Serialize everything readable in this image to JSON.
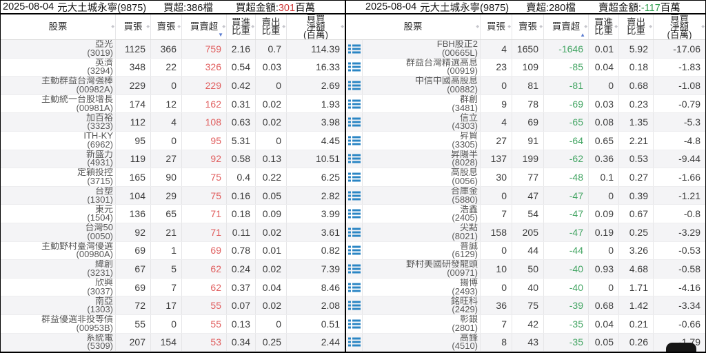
{
  "glyphs": {
    "sort_icon": "◆",
    "sort_desc": "▼",
    "sort_asc": "▲",
    "row_icon": "list-icon"
  },
  "colors": {
    "buy_amount": "#cc3333",
    "sell_amount": "#2f9e4e",
    "net_buy_value": "#e05d5d",
    "net_sell_value": "#43a563",
    "active_sort_arrow": "#5a7bd0",
    "row_icon_blue": "#2b86c4",
    "zebra_row": "#f4f4f6"
  },
  "panels": [
    {
      "id": "net-buy",
      "title": {
        "date": "2025-08-04",
        "broker": "元大土城永寧(9875)",
        "count": "買超:386檔",
        "amount_label": "買超金額:",
        "amount_value": "301",
        "amount_unit": "百萬"
      },
      "has_row_icons": false,
      "sort": {
        "column": "net",
        "dir": "desc"
      },
      "columns": [
        {
          "key": "stock",
          "label": [
            "股票"
          ]
        },
        {
          "key": "buy",
          "label": [
            "買張"
          ]
        },
        {
          "key": "sell",
          "label": [
            "賣張"
          ]
        },
        {
          "key": "net",
          "label": [
            "買賣超"
          ],
          "sorted": "desc"
        },
        {
          "key": "buy_pct",
          "label": [
            "買進",
            "比重"
          ]
        },
        {
          "key": "sell_pct",
          "label": [
            "賣出",
            "比重"
          ]
        },
        {
          "key": "net_amt",
          "label": [
            "買賣",
            "淨額",
            "(百萬)"
          ]
        }
      ],
      "rows": [
        {
          "name": "亞光",
          "code": "(3019)",
          "buy": "1125",
          "sell": "366",
          "net": "759",
          "buy_pct": "2.16",
          "sell_pct": "0.7",
          "net_amt": "114.39"
        },
        {
          "name": "英濟",
          "code": "(3294)",
          "buy": "348",
          "sell": "22",
          "net": "326",
          "buy_pct": "0.54",
          "sell_pct": "0.03",
          "net_amt": "16.33"
        },
        {
          "name": "主動群益台灣強棒",
          "code": "(00982A)",
          "buy": "229",
          "sell": "0",
          "net": "229",
          "buy_pct": "0.42",
          "sell_pct": "0",
          "net_amt": "2.69"
        },
        {
          "name": "主動統一台股增長",
          "code": "(00981A)",
          "buy": "174",
          "sell": "12",
          "net": "162",
          "buy_pct": "0.31",
          "sell_pct": "0.02",
          "net_amt": "1.93"
        },
        {
          "name": "加百裕",
          "code": "(3323)",
          "buy": "112",
          "sell": "4",
          "net": "108",
          "buy_pct": "0.63",
          "sell_pct": "0.02",
          "net_amt": "3.98"
        },
        {
          "name": "ITH-KY",
          "code": "(6962)",
          "buy": "95",
          "sell": "0",
          "net": "95",
          "buy_pct": "5.31",
          "sell_pct": "0",
          "net_amt": "4.45"
        },
        {
          "name": "新盛力",
          "code": "(4931)",
          "buy": "119",
          "sell": "27",
          "net": "92",
          "buy_pct": "0.58",
          "sell_pct": "0.13",
          "net_amt": "10.51"
        },
        {
          "name": "定穎投控",
          "code": "(3715)",
          "buy": "165",
          "sell": "90",
          "net": "75",
          "buy_pct": "0.4",
          "sell_pct": "0.22",
          "net_amt": "6.25"
        },
        {
          "name": "台塑",
          "code": "(1301)",
          "buy": "104",
          "sell": "29",
          "net": "75",
          "buy_pct": "0.16",
          "sell_pct": "0.05",
          "net_amt": "2.82"
        },
        {
          "name": "東元",
          "code": "(1504)",
          "buy": "136",
          "sell": "65",
          "net": "71",
          "buy_pct": "0.18",
          "sell_pct": "0.09",
          "net_amt": "3.99"
        },
        {
          "name": "台灣50",
          "code": "(0050)",
          "buy": "92",
          "sell": "21",
          "net": "71",
          "buy_pct": "0.11",
          "sell_pct": "0.02",
          "net_amt": "3.61"
        },
        {
          "name": "主動野村臺灣優選",
          "code": "(00980A)",
          "buy": "69",
          "sell": "1",
          "net": "69",
          "buy_pct": "0.78",
          "sell_pct": "0.01",
          "net_amt": "0.82"
        },
        {
          "name": "緯創",
          "code": "(3231)",
          "buy": "67",
          "sell": "5",
          "net": "62",
          "buy_pct": "0.24",
          "sell_pct": "0.02",
          "net_amt": "7.39"
        },
        {
          "name": "欣興",
          "code": "(3037)",
          "buy": "69",
          "sell": "7",
          "net": "62",
          "buy_pct": "0.37",
          "sell_pct": "0.04",
          "net_amt": "8.46"
        },
        {
          "name": "南亞",
          "code": "(1303)",
          "buy": "72",
          "sell": "17",
          "net": "55",
          "buy_pct": "0.07",
          "sell_pct": "0.02",
          "net_amt": "2.08"
        },
        {
          "name": "群益優選非投等債",
          "code": "(00953B)",
          "buy": "55",
          "sell": "0",
          "net": "55",
          "buy_pct": "0.13",
          "sell_pct": "0",
          "net_amt": "0.51"
        },
        {
          "name": "系統電",
          "code": "(5309)",
          "buy": "207",
          "sell": "154",
          "net": "53",
          "buy_pct": "0.34",
          "sell_pct": "0.25",
          "net_amt": "2.44"
        }
      ]
    },
    {
      "id": "net-sell",
      "title": {
        "date": "2025-08-04",
        "broker": "元大土城永寧(9875)",
        "count": "賣超:280檔",
        "amount_label": "賣超金額:",
        "amount_value": "-117",
        "amount_unit": "百萬"
      },
      "has_row_icons": true,
      "sort": {
        "column": "net",
        "dir": "asc"
      },
      "columns": [
        {
          "key": "stock",
          "label": [
            "股票"
          ]
        },
        {
          "key": "buy",
          "label": [
            "買張"
          ]
        },
        {
          "key": "sell",
          "label": [
            "賣張"
          ]
        },
        {
          "key": "net",
          "label": [
            "買賣超"
          ],
          "sorted": "asc"
        },
        {
          "key": "buy_pct",
          "label": [
            "買進",
            "比重"
          ]
        },
        {
          "key": "sell_pct",
          "label": [
            "賣出",
            "比重"
          ]
        },
        {
          "key": "net_amt",
          "label": [
            "買賣",
            "淨額",
            "(百萬)"
          ]
        }
      ],
      "rows": [
        {
          "name": "FBH股正2",
          "code": "(00665L)",
          "buy": "4",
          "sell": "1650",
          "net": "-1646",
          "buy_pct": "0.01",
          "sell_pct": "5.92",
          "net_amt": "-17.06"
        },
        {
          "name": "群益台灣精選高息",
          "code": "(00919)",
          "buy": "23",
          "sell": "109",
          "net": "-85",
          "buy_pct": "0.04",
          "sell_pct": "0.18",
          "net_amt": "-1.83"
        },
        {
          "name": "中信中國高股息",
          "code": "(00882)",
          "buy": "0",
          "sell": "81",
          "net": "-81",
          "buy_pct": "0",
          "sell_pct": "0.68",
          "net_amt": "-1.08"
        },
        {
          "name": "群創",
          "code": "(3481)",
          "buy": "9",
          "sell": "78",
          "net": "-69",
          "buy_pct": "0.03",
          "sell_pct": "0.23",
          "net_amt": "-0.79"
        },
        {
          "name": "信立",
          "code": "(4303)",
          "buy": "4",
          "sell": "69",
          "net": "-65",
          "buy_pct": "0.08",
          "sell_pct": "1.35",
          "net_amt": "-5.3"
        },
        {
          "name": "昇貿",
          "code": "(3305)",
          "buy": "27",
          "sell": "91",
          "net": "-64",
          "buy_pct": "0.65",
          "sell_pct": "2.21",
          "net_amt": "-4.8"
        },
        {
          "name": "昇陽半",
          "code": "(8028)",
          "buy": "137",
          "sell": "199",
          "net": "-62",
          "buy_pct": "0.36",
          "sell_pct": "0.53",
          "net_amt": "-9.44"
        },
        {
          "name": "高股息",
          "code": "(0056)",
          "buy": "30",
          "sell": "77",
          "net": "-48",
          "buy_pct": "0.1",
          "sell_pct": "0.27",
          "net_amt": "-1.66"
        },
        {
          "name": "合庫金",
          "code": "(5880)",
          "buy": "0",
          "sell": "47",
          "net": "-47",
          "buy_pct": "0",
          "sell_pct": "0.39",
          "net_amt": "-1.21"
        },
        {
          "name": "浩鑫",
          "code": "(2405)",
          "buy": "7",
          "sell": "54",
          "net": "-47",
          "buy_pct": "0.09",
          "sell_pct": "0.67",
          "net_amt": "-0.8"
        },
        {
          "name": "尖點",
          "code": "(8021)",
          "buy": "158",
          "sell": "205",
          "net": "-47",
          "buy_pct": "0.19",
          "sell_pct": "0.25",
          "net_amt": "-3.29"
        },
        {
          "name": "普誠",
          "code": "(6129)",
          "buy": "0",
          "sell": "44",
          "net": "-44",
          "buy_pct": "0",
          "sell_pct": "3.26",
          "net_amt": "-0.53"
        },
        {
          "name": "野村美國研發龍頭",
          "code": "(00971)",
          "buy": "10",
          "sell": "50",
          "net": "-40",
          "buy_pct": "0.93",
          "sell_pct": "4.68",
          "net_amt": "-0.58"
        },
        {
          "name": "揚博",
          "code": "(2493)",
          "buy": "0",
          "sell": "40",
          "net": "-40",
          "buy_pct": "0",
          "sell_pct": "1.71",
          "net_amt": "-4.16"
        },
        {
          "name": "銘旺科",
          "code": "(2429)",
          "buy": "36",
          "sell": "75",
          "net": "-39",
          "buy_pct": "0.68",
          "sell_pct": "1.42",
          "net_amt": "-3.34"
        },
        {
          "name": "彰銀",
          "code": "(2801)",
          "buy": "7",
          "sell": "42",
          "net": "-35",
          "buy_pct": "0.04",
          "sell_pct": "0.21",
          "net_amt": "-0.66"
        },
        {
          "name": "高鋒",
          "code": "(4510)",
          "buy": "8",
          "sell": "43",
          "net": "-35",
          "buy_pct": "0.05",
          "sell_pct": "0.26",
          "net_amt": "-1.79"
        }
      ]
    }
  ]
}
